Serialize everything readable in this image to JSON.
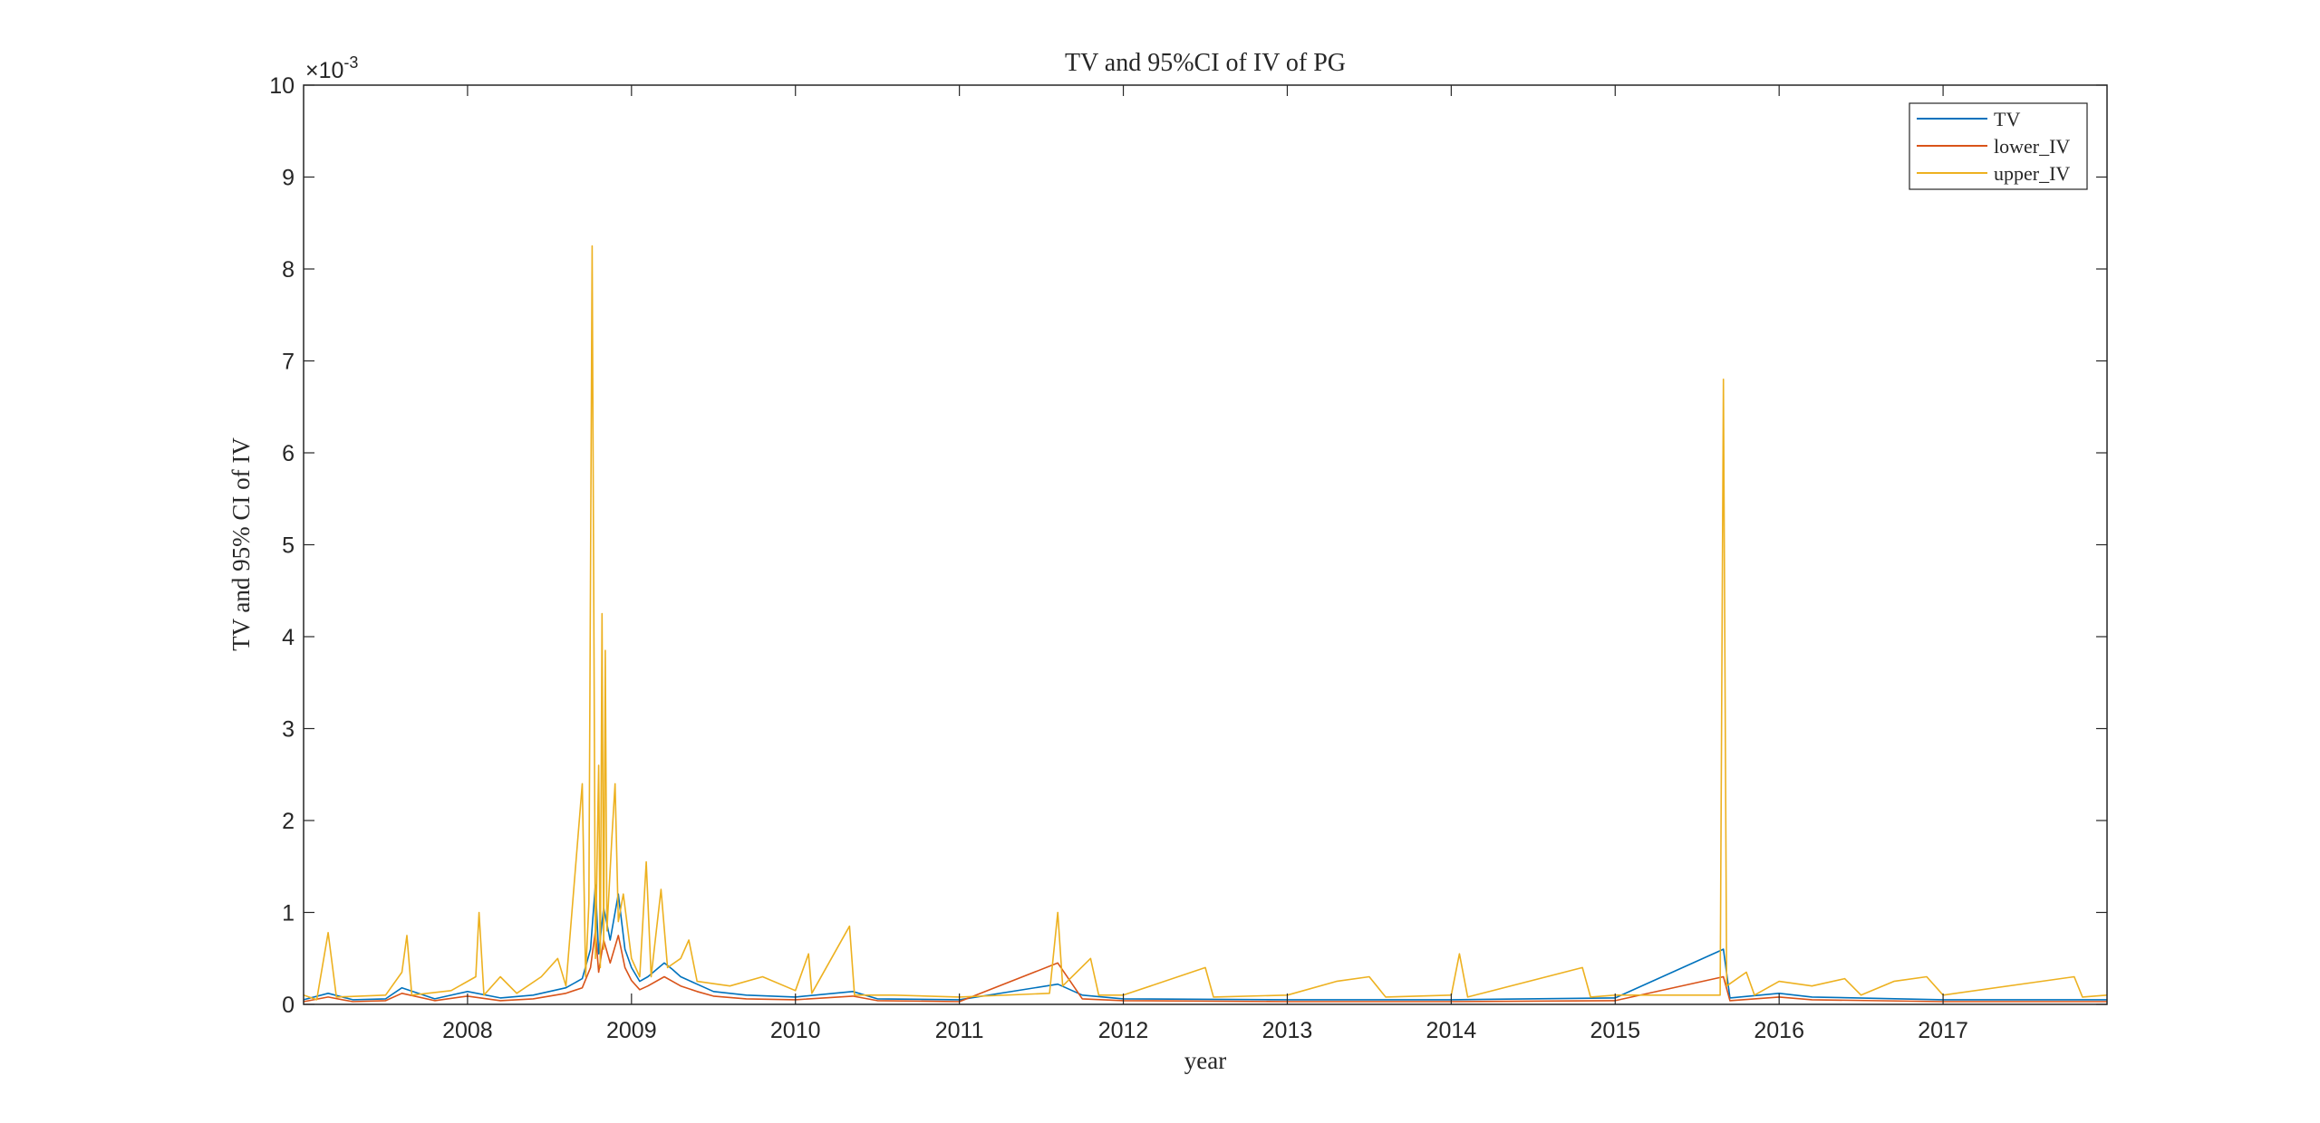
{
  "chart_data": {
    "type": "line",
    "title": "TV and 95%CI of IV of PG",
    "xlabel": "year",
    "ylabel": "TV and 95% CI of IV",
    "y_exponent_label": "×10",
    "y_exponent_power": "-3",
    "x_tick_labels": [
      "2008",
      "2009",
      "2010",
      "2011",
      "2012",
      "2013",
      "2014",
      "2015",
      "2016",
      "2017"
    ],
    "y_tick_labels": [
      "0",
      "1",
      "2",
      "3",
      "4",
      "5",
      "6",
      "7",
      "8",
      "9",
      "10"
    ],
    "xlim": [
      2007.0,
      2018.0
    ],
    "ylim": [
      0,
      10
    ],
    "y_unit_scale": 0.001,
    "grid": false,
    "legend_position": "top-right",
    "series": [
      {
        "name": "TV",
        "color": "#0072BD",
        "points": [
          [
            2007.0,
            0.05
          ],
          [
            2007.15,
            0.12
          ],
          [
            2007.3,
            0.05
          ],
          [
            2007.5,
            0.06
          ],
          [
            2007.6,
            0.18
          ],
          [
            2007.8,
            0.06
          ],
          [
            2008.0,
            0.14
          ],
          [
            2008.2,
            0.07
          ],
          [
            2008.4,
            0.1
          ],
          [
            2008.6,
            0.18
          ],
          [
            2008.7,
            0.28
          ],
          [
            2008.75,
            0.6
          ],
          [
            2008.78,
            1.3
          ],
          [
            2008.8,
            0.55
          ],
          [
            2008.83,
            1.05
          ],
          [
            2008.87,
            0.7
          ],
          [
            2008.92,
            1.2
          ],
          [
            2008.96,
            0.6
          ],
          [
            2009.0,
            0.4
          ],
          [
            2009.05,
            0.25
          ],
          [
            2009.1,
            0.3
          ],
          [
            2009.2,
            0.45
          ],
          [
            2009.25,
            0.38
          ],
          [
            2009.3,
            0.3
          ],
          [
            2009.4,
            0.22
          ],
          [
            2009.5,
            0.14
          ],
          [
            2009.7,
            0.1
          ],
          [
            2010.0,
            0.08
          ],
          [
            2010.35,
            0.14
          ],
          [
            2010.5,
            0.06
          ],
          [
            2011.0,
            0.05
          ],
          [
            2011.6,
            0.22
          ],
          [
            2011.75,
            0.1
          ],
          [
            2012.0,
            0.06
          ],
          [
            2013.0,
            0.05
          ],
          [
            2014.0,
            0.05
          ],
          [
            2015.0,
            0.07
          ],
          [
            2015.66,
            0.6
          ],
          [
            2015.7,
            0.07
          ],
          [
            2016.0,
            0.12
          ],
          [
            2016.2,
            0.08
          ],
          [
            2017.0,
            0.05
          ],
          [
            2018.0,
            0.05
          ]
        ]
      },
      {
        "name": "lower_IV",
        "color": "#D95319",
        "points": [
          [
            2007.0,
            0.03
          ],
          [
            2007.15,
            0.08
          ],
          [
            2007.3,
            0.03
          ],
          [
            2007.5,
            0.04
          ],
          [
            2007.6,
            0.12
          ],
          [
            2007.8,
            0.04
          ],
          [
            2008.0,
            0.09
          ],
          [
            2008.2,
            0.04
          ],
          [
            2008.4,
            0.06
          ],
          [
            2008.6,
            0.12
          ],
          [
            2008.7,
            0.18
          ],
          [
            2008.75,
            0.4
          ],
          [
            2008.78,
            0.8
          ],
          [
            2008.8,
            0.35
          ],
          [
            2008.83,
            0.7
          ],
          [
            2008.87,
            0.45
          ],
          [
            2008.92,
            0.75
          ],
          [
            2008.96,
            0.4
          ],
          [
            2009.0,
            0.26
          ],
          [
            2009.05,
            0.16
          ],
          [
            2009.1,
            0.2
          ],
          [
            2009.2,
            0.3
          ],
          [
            2009.25,
            0.25
          ],
          [
            2009.3,
            0.2
          ],
          [
            2009.4,
            0.14
          ],
          [
            2009.5,
            0.09
          ],
          [
            2009.7,
            0.06
          ],
          [
            2010.0,
            0.05
          ],
          [
            2010.35,
            0.09
          ],
          [
            2010.5,
            0.04
          ],
          [
            2011.0,
            0.03
          ],
          [
            2011.6,
            0.45
          ],
          [
            2011.75,
            0.06
          ],
          [
            2012.0,
            0.04
          ],
          [
            2013.0,
            0.03
          ],
          [
            2014.0,
            0.03
          ],
          [
            2015.0,
            0.04
          ],
          [
            2015.66,
            0.3
          ],
          [
            2015.7,
            0.04
          ],
          [
            2016.0,
            0.08
          ],
          [
            2016.2,
            0.05
          ],
          [
            2017.0,
            0.03
          ],
          [
            2018.0,
            0.03
          ]
        ]
      },
      {
        "name": "upper_IV",
        "color": "#EDB120",
        "points": [
          [
            2007.0,
            0.1
          ],
          [
            2007.08,
            0.05
          ],
          [
            2007.15,
            0.78
          ],
          [
            2007.2,
            0.08
          ],
          [
            2007.5,
            0.1
          ],
          [
            2007.6,
            0.35
          ],
          [
            2007.63,
            0.75
          ],
          [
            2007.66,
            0.1
          ],
          [
            2007.9,
            0.15
          ],
          [
            2008.05,
            0.3
          ],
          [
            2008.07,
            1.0
          ],
          [
            2008.1,
            0.1
          ],
          [
            2008.2,
            0.3
          ],
          [
            2008.3,
            0.12
          ],
          [
            2008.45,
            0.3
          ],
          [
            2008.55,
            0.5
          ],
          [
            2008.6,
            0.2
          ],
          [
            2008.7,
            2.4
          ],
          [
            2008.72,
            0.3
          ],
          [
            2008.74,
            1.1
          ],
          [
            2008.76,
            8.25
          ],
          [
            2008.78,
            0.5
          ],
          [
            2008.8,
            2.6
          ],
          [
            2008.81,
            0.4
          ],
          [
            2008.82,
            4.25
          ],
          [
            2008.83,
            0.6
          ],
          [
            2008.84,
            3.85
          ],
          [
            2008.85,
            0.8
          ],
          [
            2008.88,
            1.8
          ],
          [
            2008.9,
            2.4
          ],
          [
            2008.92,
            0.9
          ],
          [
            2008.95,
            1.2
          ],
          [
            2009.0,
            0.5
          ],
          [
            2009.05,
            0.3
          ],
          [
            2009.09,
            1.55
          ],
          [
            2009.12,
            0.3
          ],
          [
            2009.18,
            1.25
          ],
          [
            2009.22,
            0.4
          ],
          [
            2009.3,
            0.5
          ],
          [
            2009.35,
            0.7
          ],
          [
            2009.4,
            0.25
          ],
          [
            2009.6,
            0.2
          ],
          [
            2009.8,
            0.3
          ],
          [
            2010.0,
            0.15
          ],
          [
            2010.08,
            0.55
          ],
          [
            2010.1,
            0.12
          ],
          [
            2010.33,
            0.85
          ],
          [
            2010.36,
            0.1
          ],
          [
            2010.6,
            0.1
          ],
          [
            2011.0,
            0.08
          ],
          [
            2011.55,
            0.12
          ],
          [
            2011.6,
            1.0
          ],
          [
            2011.63,
            0.2
          ],
          [
            2011.8,
            0.5
          ],
          [
            2011.85,
            0.1
          ],
          [
            2012.0,
            0.1
          ],
          [
            2012.5,
            0.4
          ],
          [
            2012.55,
            0.08
          ],
          [
            2013.0,
            0.1
          ],
          [
            2013.3,
            0.25
          ],
          [
            2013.5,
            0.3
          ],
          [
            2013.6,
            0.08
          ],
          [
            2014.0,
            0.1
          ],
          [
            2014.05,
            0.55
          ],
          [
            2014.1,
            0.08
          ],
          [
            2014.8,
            0.4
          ],
          [
            2014.85,
            0.08
          ],
          [
            2015.0,
            0.1
          ],
          [
            2015.64,
            0.1
          ],
          [
            2015.66,
            6.8
          ],
          [
            2015.68,
            0.2
          ],
          [
            2015.8,
            0.35
          ],
          [
            2015.85,
            0.1
          ],
          [
            2016.0,
            0.25
          ],
          [
            2016.2,
            0.2
          ],
          [
            2016.4,
            0.28
          ],
          [
            2016.5,
            0.1
          ],
          [
            2016.7,
            0.25
          ],
          [
            2016.9,
            0.3
          ],
          [
            2017.0,
            0.1
          ],
          [
            2017.8,
            0.3
          ],
          [
            2017.85,
            0.08
          ],
          [
            2018.0,
            0.1
          ]
        ]
      }
    ]
  }
}
